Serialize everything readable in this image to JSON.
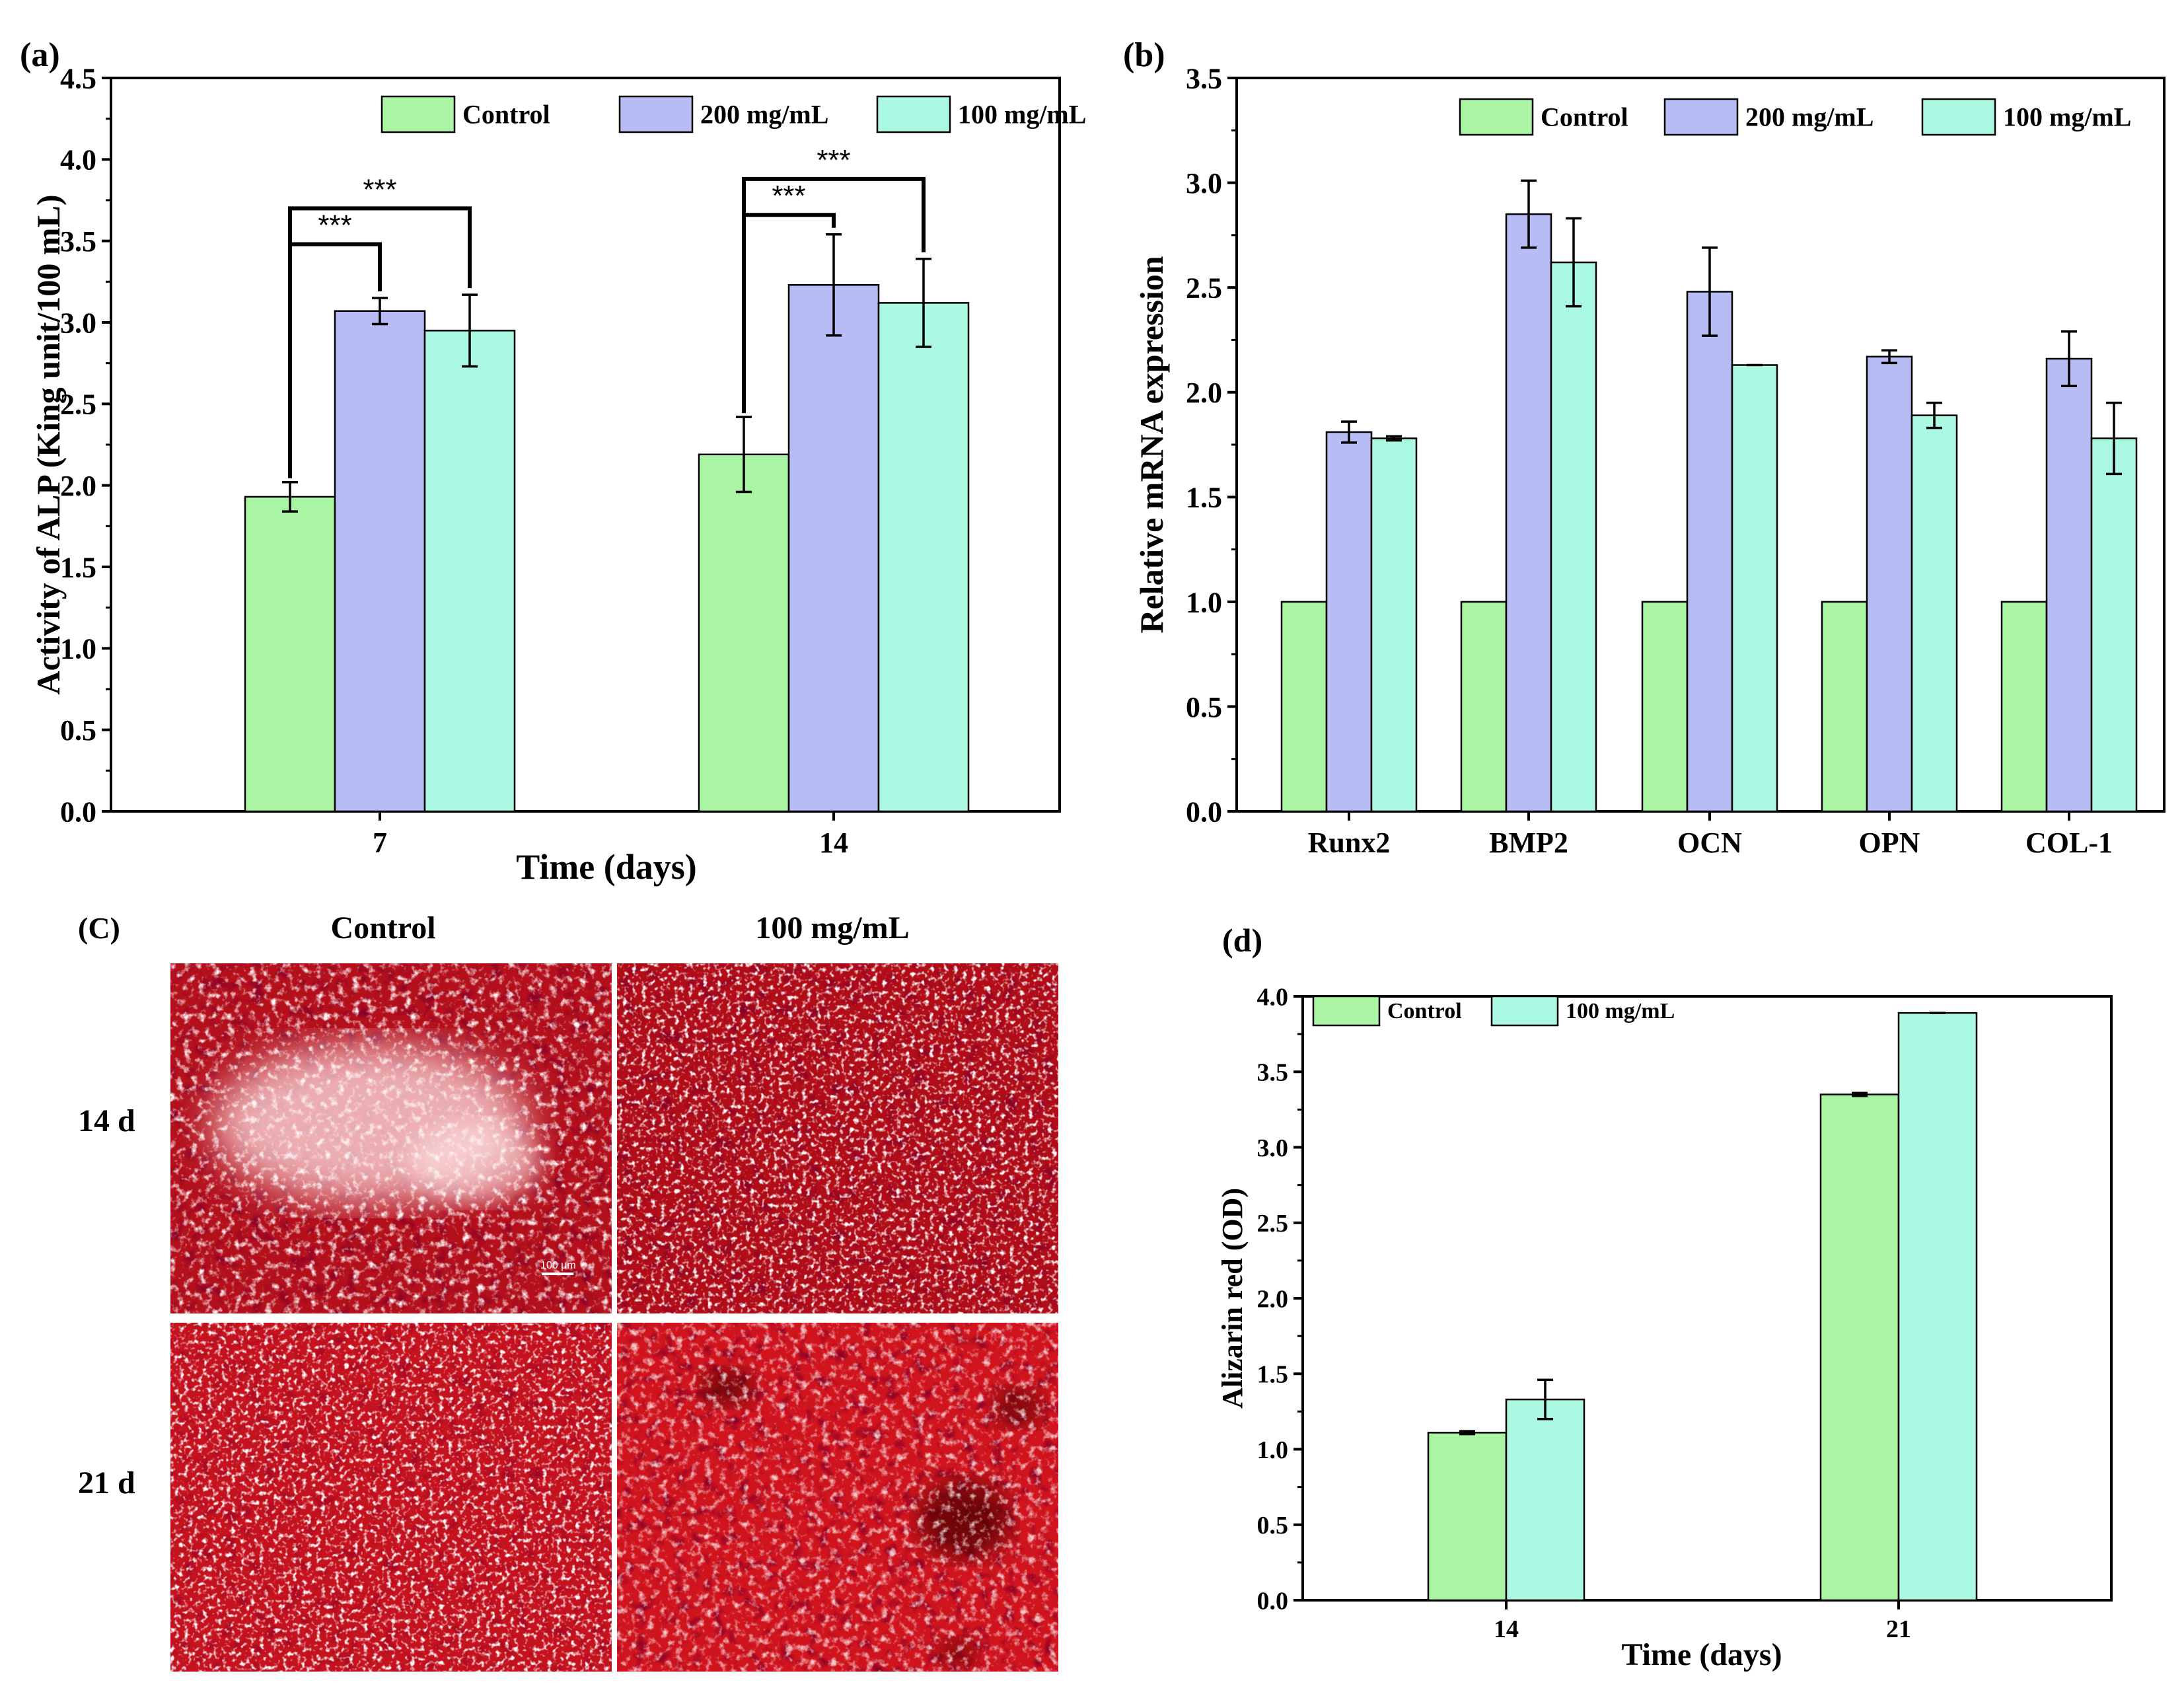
{
  "colors": {
    "control": "#a9f5a4",
    "c200": "#b7bcf5",
    "c100": "#abf8e3",
    "stain_dark": "#7a0008",
    "stain_mid": "#c8101c",
    "stain_light": "#ffe6e6"
  },
  "chart_data": [
    {
      "panel": "(a)",
      "type": "bar",
      "xlabel": "Time (days)",
      "ylabel": "Activity of ALP (King unit/100 mL)",
      "ylim": [
        0,
        4.5
      ],
      "yticks": [
        "0.0",
        "0.5",
        "1.0",
        "1.5",
        "2.0",
        "2.5",
        "3.0",
        "3.5",
        "4.0",
        "4.5"
      ],
      "categories": [
        "7",
        "14"
      ],
      "legend_placement": "top-right",
      "series": [
        {
          "name": "Control",
          "color_key": "control",
          "values": [
            1.93,
            2.19
          ],
          "errors": [
            0.09,
            0.23
          ]
        },
        {
          "name": "200 mg/mL",
          "color_key": "c200",
          "values": [
            3.07,
            3.23
          ],
          "errors": [
            0.08,
            0.31
          ]
        },
        {
          "name": "100 mg/mL",
          "color_key": "c100",
          "values": [
            2.95,
            3.12
          ],
          "errors": [
            0.22,
            0.27
          ]
        }
      ],
      "significance": [
        {
          "category": 0,
          "from": 0,
          "to": 1,
          "label": "***",
          "level": 3.48
        },
        {
          "category": 0,
          "from": 0,
          "to": 2,
          "label": "***",
          "level": 3.7
        },
        {
          "category": 1,
          "from": 0,
          "to": 1,
          "label": "***",
          "level": 3.66
        },
        {
          "category": 1,
          "from": 0,
          "to": 2,
          "label": "***",
          "level": 3.88
        }
      ]
    },
    {
      "panel": "(b)",
      "type": "bar",
      "xlabel": "",
      "ylabel": "Relative mRNA expression",
      "ylim": [
        0,
        3.5
      ],
      "yticks": [
        "0.0",
        "0.5",
        "1.0",
        "1.5",
        "2.0",
        "2.5",
        "3.0",
        "3.5"
      ],
      "categories": [
        "Runx2",
        "BMP2",
        "OCN",
        "OPN",
        "COL-1"
      ],
      "legend_placement": "top-right",
      "series": [
        {
          "name": "Control",
          "color_key": "control",
          "values": [
            1.0,
            1.0,
            1.0,
            1.0,
            1.0
          ],
          "errors": [
            0,
            0,
            0,
            0,
            0
          ]
        },
        {
          "name": "200 mg/mL",
          "color_key": "c200",
          "values": [
            1.81,
            2.85,
            2.48,
            2.17,
            2.16
          ],
          "errors": [
            0.05,
            0.16,
            0.21,
            0.03,
            0.13
          ]
        },
        {
          "name": "100 mg/mL",
          "color_key": "c100",
          "values": [
            1.78,
            2.62,
            2.13,
            1.89,
            1.78
          ],
          "errors": [
            0.01,
            0.21,
            0.0,
            0.06,
            0.17
          ]
        }
      ]
    },
    {
      "panel": "(d)",
      "type": "bar",
      "xlabel": "Time (days)",
      "ylabel": "Alizarin red (OD)",
      "ylim": [
        0,
        4.0
      ],
      "yticks": [
        "0.0",
        "0.5",
        "1.0",
        "1.5",
        "2.0",
        "2.5",
        "3.0",
        "3.5",
        "4.0"
      ],
      "categories": [
        "14",
        "21"
      ],
      "legend_placement": "top-left",
      "series": [
        {
          "name": "Control",
          "color_key": "control",
          "values": [
            1.11,
            3.35
          ],
          "errors": [
            0.01,
            0.01
          ]
        },
        {
          "name": "100 mg/mL",
          "color_key": "c100",
          "values": [
            1.33,
            3.89
          ],
          "errors": [
            0.13,
            0.0
          ]
        }
      ]
    }
  ],
  "panel_c": {
    "label": "(C)",
    "col_labels": [
      "Control",
      "100 mg/mL"
    ],
    "row_labels": [
      "14 d",
      "21 d"
    ],
    "scale_bar": "100 μm"
  }
}
